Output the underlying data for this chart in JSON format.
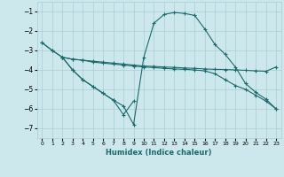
{
  "xlabel": "Humidex (Indice chaleur)",
  "bg_color": "#cce8ec",
  "grid_color": "#aacdd4",
  "line_color": "#1a6b6b",
  "xlim": [
    -0.5,
    23.5
  ],
  "ylim": [
    -7.5,
    -0.5
  ],
  "yticks": [
    -7,
    -6,
    -5,
    -4,
    -3,
    -2,
    -1
  ],
  "xticks": [
    0,
    1,
    2,
    3,
    4,
    5,
    6,
    7,
    8,
    9,
    10,
    11,
    12,
    13,
    14,
    15,
    16,
    17,
    18,
    19,
    20,
    21,
    22,
    23
  ],
  "line1_x": [
    0,
    1,
    2,
    3,
    4,
    5,
    6,
    7,
    8,
    9,
    10,
    11,
    12,
    13,
    14,
    15,
    16,
    17,
    18,
    19,
    20,
    21,
    22,
    23
  ],
  "line1_y": [
    -2.6,
    -3.0,
    -3.35,
    -3.45,
    -3.5,
    -3.55,
    -3.6,
    -3.65,
    -3.7,
    -3.75,
    -3.8,
    -3.82,
    -3.85,
    -3.87,
    -3.9,
    -3.92,
    -3.95,
    -3.97,
    -3.98,
    -4.0,
    -4.02,
    -4.05,
    -4.07,
    -3.85
  ],
  "line2_x": [
    0,
    1,
    2,
    3,
    4,
    5,
    6,
    7,
    8,
    9,
    10,
    11,
    12,
    13,
    14,
    15,
    16,
    17,
    18,
    19,
    20,
    21,
    22,
    23
  ],
  "line2_y": [
    -2.6,
    -3.0,
    -3.35,
    -3.45,
    -3.5,
    -3.6,
    -3.65,
    -3.7,
    -3.75,
    -3.8,
    -3.85,
    -3.88,
    -3.92,
    -3.95,
    -3.97,
    -4.0,
    -4.05,
    -4.2,
    -4.5,
    -4.8,
    -5.0,
    -5.3,
    -5.6,
    -6.0
  ],
  "line3_x": [
    2,
    3,
    4,
    5,
    6,
    7,
    8,
    9,
    10,
    11,
    12,
    13,
    14,
    15,
    16,
    17,
    18,
    19,
    20,
    21,
    22,
    23
  ],
  "line3_y": [
    -3.35,
    -4.0,
    -4.5,
    -4.85,
    -5.2,
    -5.55,
    -5.85,
    -6.8,
    -3.35,
    -1.6,
    -1.15,
    -1.05,
    -1.1,
    -1.2,
    -1.9,
    -2.7,
    -3.2,
    -3.85,
    -4.7,
    -5.15,
    -5.5,
    -6.0
  ],
  "line4_x": [
    2,
    3,
    4,
    5,
    6,
    7,
    8,
    9
  ],
  "line4_y": [
    -3.35,
    -4.0,
    -4.5,
    -4.85,
    -5.2,
    -5.55,
    -6.3,
    -5.6
  ]
}
